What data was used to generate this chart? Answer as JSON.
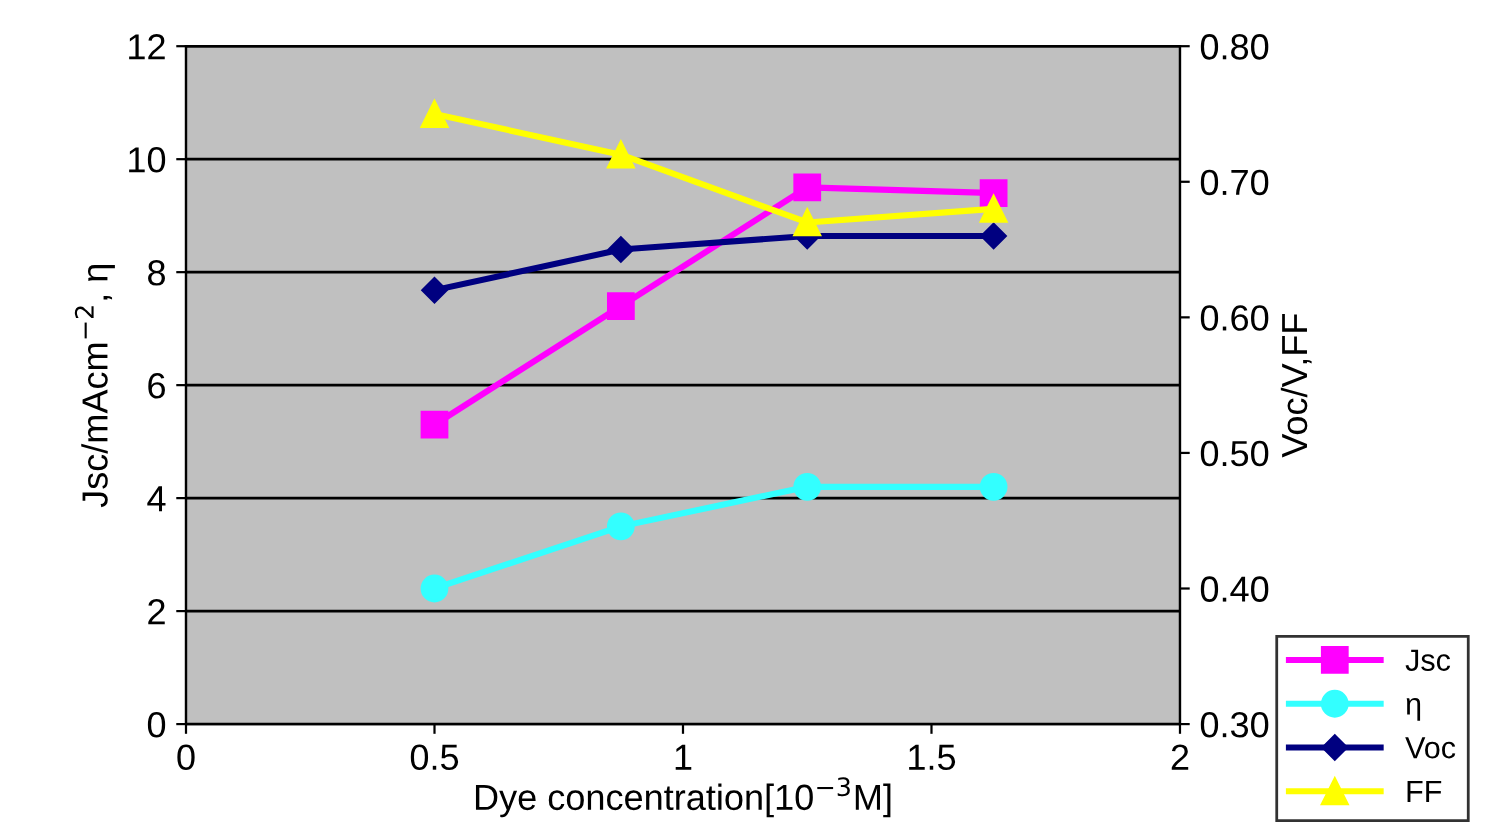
{
  "chart_data": {
    "type": "line",
    "xlabel": "Dye concentration[10$^{−3}$M]",
    "ylabel": "Jsc/mAcm$^{−2}$, η",
    "y2label": "Voc/V,FF",
    "x": [
      0.5,
      0.875,
      1.25,
      1.625
    ],
    "series": [
      {
        "name": "Jsc",
        "color": "#ff00ff",
        "marker": "square",
        "values": [
          5.3,
          7.4,
          9.5,
          9.4
        ]
      },
      {
        "name": "η",
        "color": "#33ffff",
        "marker": "circle",
        "values": [
          2.4,
          3.5,
          4.2,
          4.2
        ]
      },
      {
        "name": "Voc",
        "color": "#000080",
        "marker": "diamond",
        "axis": "y2",
        "values": [
          0.62,
          0.65,
          0.66,
          0.66
        ]
      },
      {
        "name": "FF",
        "color": "#ffff00",
        "marker": "triangle",
        "axis": "y2",
        "values": [
          0.75,
          0.72,
          0.67,
          0.68
        ]
      }
    ],
    "xlim": [
      0,
      2
    ],
    "xticks": [
      0,
      0.5,
      1,
      1.5,
      2
    ],
    "ylim": [
      0,
      12
    ],
    "yticks": [
      0,
      2,
      4,
      6,
      8,
      10,
      12
    ],
    "y2lim": [
      0.3,
      0.8
    ],
    "y2ticks": [
      {
        "value": 0.3,
        "label": "0.30"
      },
      {
        "value": 0.4,
        "label": "0.40"
      },
      {
        "value": 0.5,
        "label": "0.50"
      },
      {
        "value": 0.6,
        "label": "0.60"
      },
      {
        "value": 0.7,
        "label": "0.70"
      },
      {
        "value": 0.8,
        "label": "0.80"
      }
    ],
    "grid": "y",
    "legend": "bottom right"
  }
}
